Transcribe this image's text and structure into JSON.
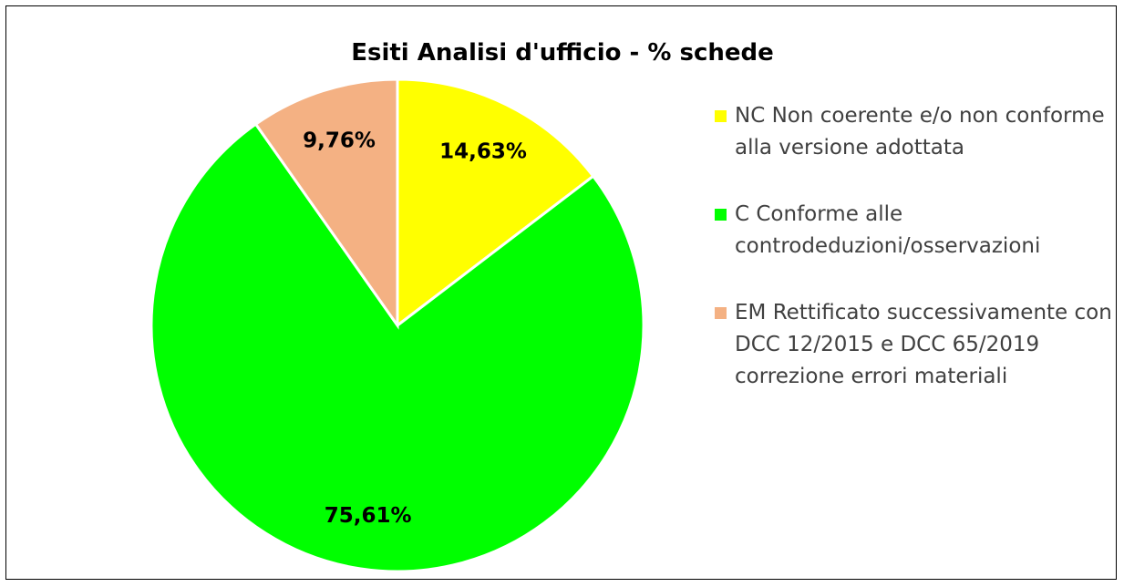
{
  "chart_data": {
    "type": "pie",
    "title": "Esiti Analisi d'ufficio - % schede",
    "categories": [
      "NC Non coerente e/o non conforme alla versione adottata",
      "C Conforme alle controdeduzioni/osservazioni",
      "EM Rettificato successivamente con DCC 12/2015 e DCC 65/2019 correzione errori materiali"
    ],
    "values": [
      14.63,
      75.61,
      9.76
    ],
    "value_labels": [
      "14,63%",
      "75,61%",
      "9,76%"
    ],
    "colors": [
      "#ffff00",
      "#00ff00",
      "#f4b183"
    ],
    "legend": "right"
  }
}
